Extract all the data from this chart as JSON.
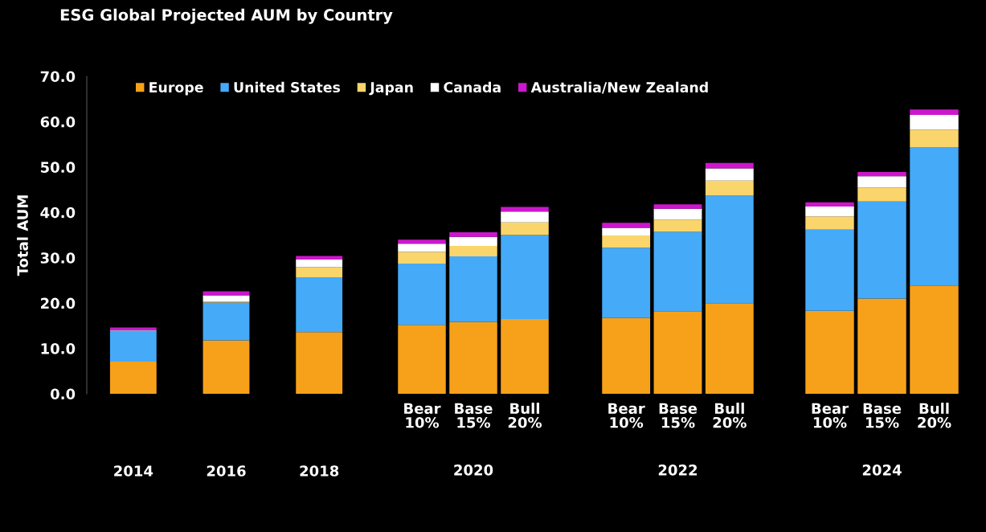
{
  "chart_data": [
    {
      "type": "bar",
      "stacked": true,
      "title": "ESG Global Projected AUM by Country",
      "ylabel": "Total AUM",
      "legend": "top",
      "categories": [
        "2014",
        "2016",
        "2018"
      ],
      "ylim": [
        0,
        70
      ],
      "yticks": [
        {
          "value": 0,
          "label": "0.0"
        },
        {
          "value": 10,
          "label": "10.0"
        },
        {
          "value": 20,
          "label": "20.0"
        },
        {
          "value": 30,
          "label": "30.0"
        },
        {
          "value": 40,
          "label": "40.0"
        },
        {
          "value": 50,
          "label": "50.0"
        },
        {
          "value": 60,
          "label": "60.0"
        },
        {
          "value": 70,
          "label": "70.0"
        }
      ],
      "series": [
        {
          "name": "Europe",
          "color": "#f7a11a",
          "values": [
            7.1,
            11.8,
            13.6
          ]
        },
        {
          "name": "United States",
          "color": "#45aaf8",
          "values": [
            6.8,
            8.3,
            12.1
          ]
        },
        {
          "name": "Japan",
          "color": "#fad56b",
          "values": [
            0.0,
            0.2,
            2.2
          ]
        },
        {
          "name": "Canada",
          "color": "#ffffff",
          "values": [
            0.1,
            1.4,
            1.7
          ]
        },
        {
          "name": "Australia/New Zealand",
          "color": "#cc17cc",
          "values": [
            0.6,
            0.9,
            0.8
          ]
        }
      ]
    },
    {
      "type": "bar",
      "stacked": true,
      "xlabel": "2020",
      "tick_labels": "x",
      "categories": [
        "Bear\n10%",
        "Base\n15%",
        "Bull\n20%"
      ],
      "ylim": [
        0,
        70
      ],
      "series": [
        {
          "color": "#f7a11a",
          "values": [
            15.2,
            15.8,
            16.5
          ]
        },
        {
          "color": "#45aaf8",
          "values": [
            13.5,
            14.5,
            18.5
          ]
        },
        {
          "color": "#fad56b",
          "values": [
            2.6,
            2.3,
            2.8
          ]
        },
        {
          "color": "#ffffff",
          "values": [
            1.8,
            2.0,
            2.4
          ]
        },
        {
          "color": "#cc17cc",
          "values": [
            0.9,
            1.0,
            1.0
          ]
        }
      ]
    },
    {
      "type": "bar",
      "stacked": true,
      "xlabel": "2022",
      "tick_labels": "x",
      "categories": [
        "Bear\n10%",
        "Base\n15%",
        "Bull\n20%"
      ],
      "ylim": [
        0,
        70
      ],
      "series": [
        {
          "color": "#f7a11a",
          "values": [
            16.7,
            18.2,
            20.0
          ]
        },
        {
          "color": "#45aaf8",
          "values": [
            15.5,
            17.5,
            23.7
          ]
        },
        {
          "color": "#fad56b",
          "values": [
            2.7,
            2.7,
            3.3
          ]
        },
        {
          "color": "#ffffff",
          "values": [
            1.7,
            2.4,
            2.7
          ]
        },
        {
          "color": "#cc17cc",
          "values": [
            1.1,
            1.0,
            1.2
          ]
        }
      ]
    },
    {
      "type": "bar",
      "stacked": true,
      "xlabel": "2024",
      "tick_labels": "x",
      "categories": [
        "Bear\n10%",
        "Base\n15%",
        "Bull\n20%"
      ],
      "ylim": [
        0,
        70
      ],
      "series": [
        {
          "color": "#f7a11a",
          "values": [
            18.3,
            21.0,
            23.9
          ]
        },
        {
          "color": "#45aaf8",
          "values": [
            17.9,
            21.4,
            30.5
          ]
        },
        {
          "color": "#fad56b",
          "values": [
            2.9,
            3.1,
            3.8
          ]
        },
        {
          "color": "#ffffff",
          "values": [
            2.2,
            2.5,
            3.3
          ]
        },
        {
          "color": "#cc17cc",
          "values": [
            0.9,
            0.9,
            1.2
          ]
        }
      ]
    }
  ]
}
